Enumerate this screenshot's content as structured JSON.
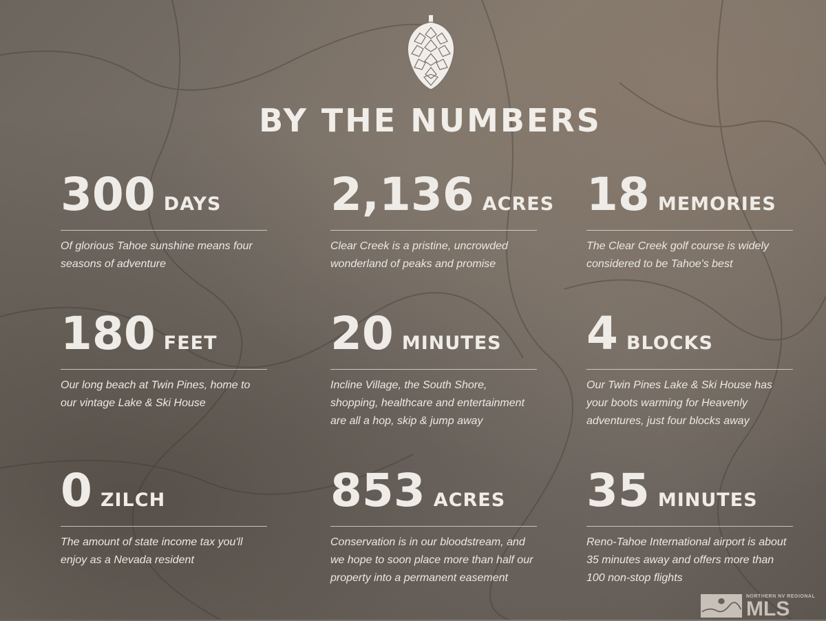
{
  "title": "BY THE NUMBERS",
  "stats": [
    {
      "number": "300",
      "unit": "DAYS",
      "description": "Of glorious Tahoe sunshine means four seasons of adventure"
    },
    {
      "number": "2,136",
      "unit": "ACRES",
      "description": "Clear Creek is a pristine, uncrowded wonderland of peaks and promise"
    },
    {
      "number": "18",
      "unit": "MEMORIES",
      "description": "The Clear Creek golf course is widely considered to be Tahoe's best"
    },
    {
      "number": "180",
      "unit": "FEET",
      "description": "Our long beach at Twin Pines, home to our vintage Lake & Ski House"
    },
    {
      "number": "20",
      "unit": "MINUTES",
      "description": "Incline Village, the South Shore, shopping, healthcare and entertainment are all a hop, skip & jump away"
    },
    {
      "number": "4",
      "unit": "BLOCKS",
      "description": "Our Twin Pines Lake & Ski House has your boots warming for Heavenly adventures, just four blocks away"
    },
    {
      "number": "0",
      "unit": "ZILCH",
      "description": "The amount of state income tax you'll enjoy as a Nevada resident"
    },
    {
      "number": "853",
      "unit": "ACRES",
      "description": "Conservation is in our bloodstream, and we hope to soon place more than half our property into a permanent easement"
    },
    {
      "number": "35",
      "unit": "MINUTES",
      "description": "Reno-Tahoe International airport is about 35 minutes away and offers more than 100 non-stop flights"
    }
  ],
  "watermark": {
    "small": "NORTHERN NV REGIONAL",
    "big": "MLS"
  },
  "icons": {
    "logo": "pinecone-icon"
  }
}
